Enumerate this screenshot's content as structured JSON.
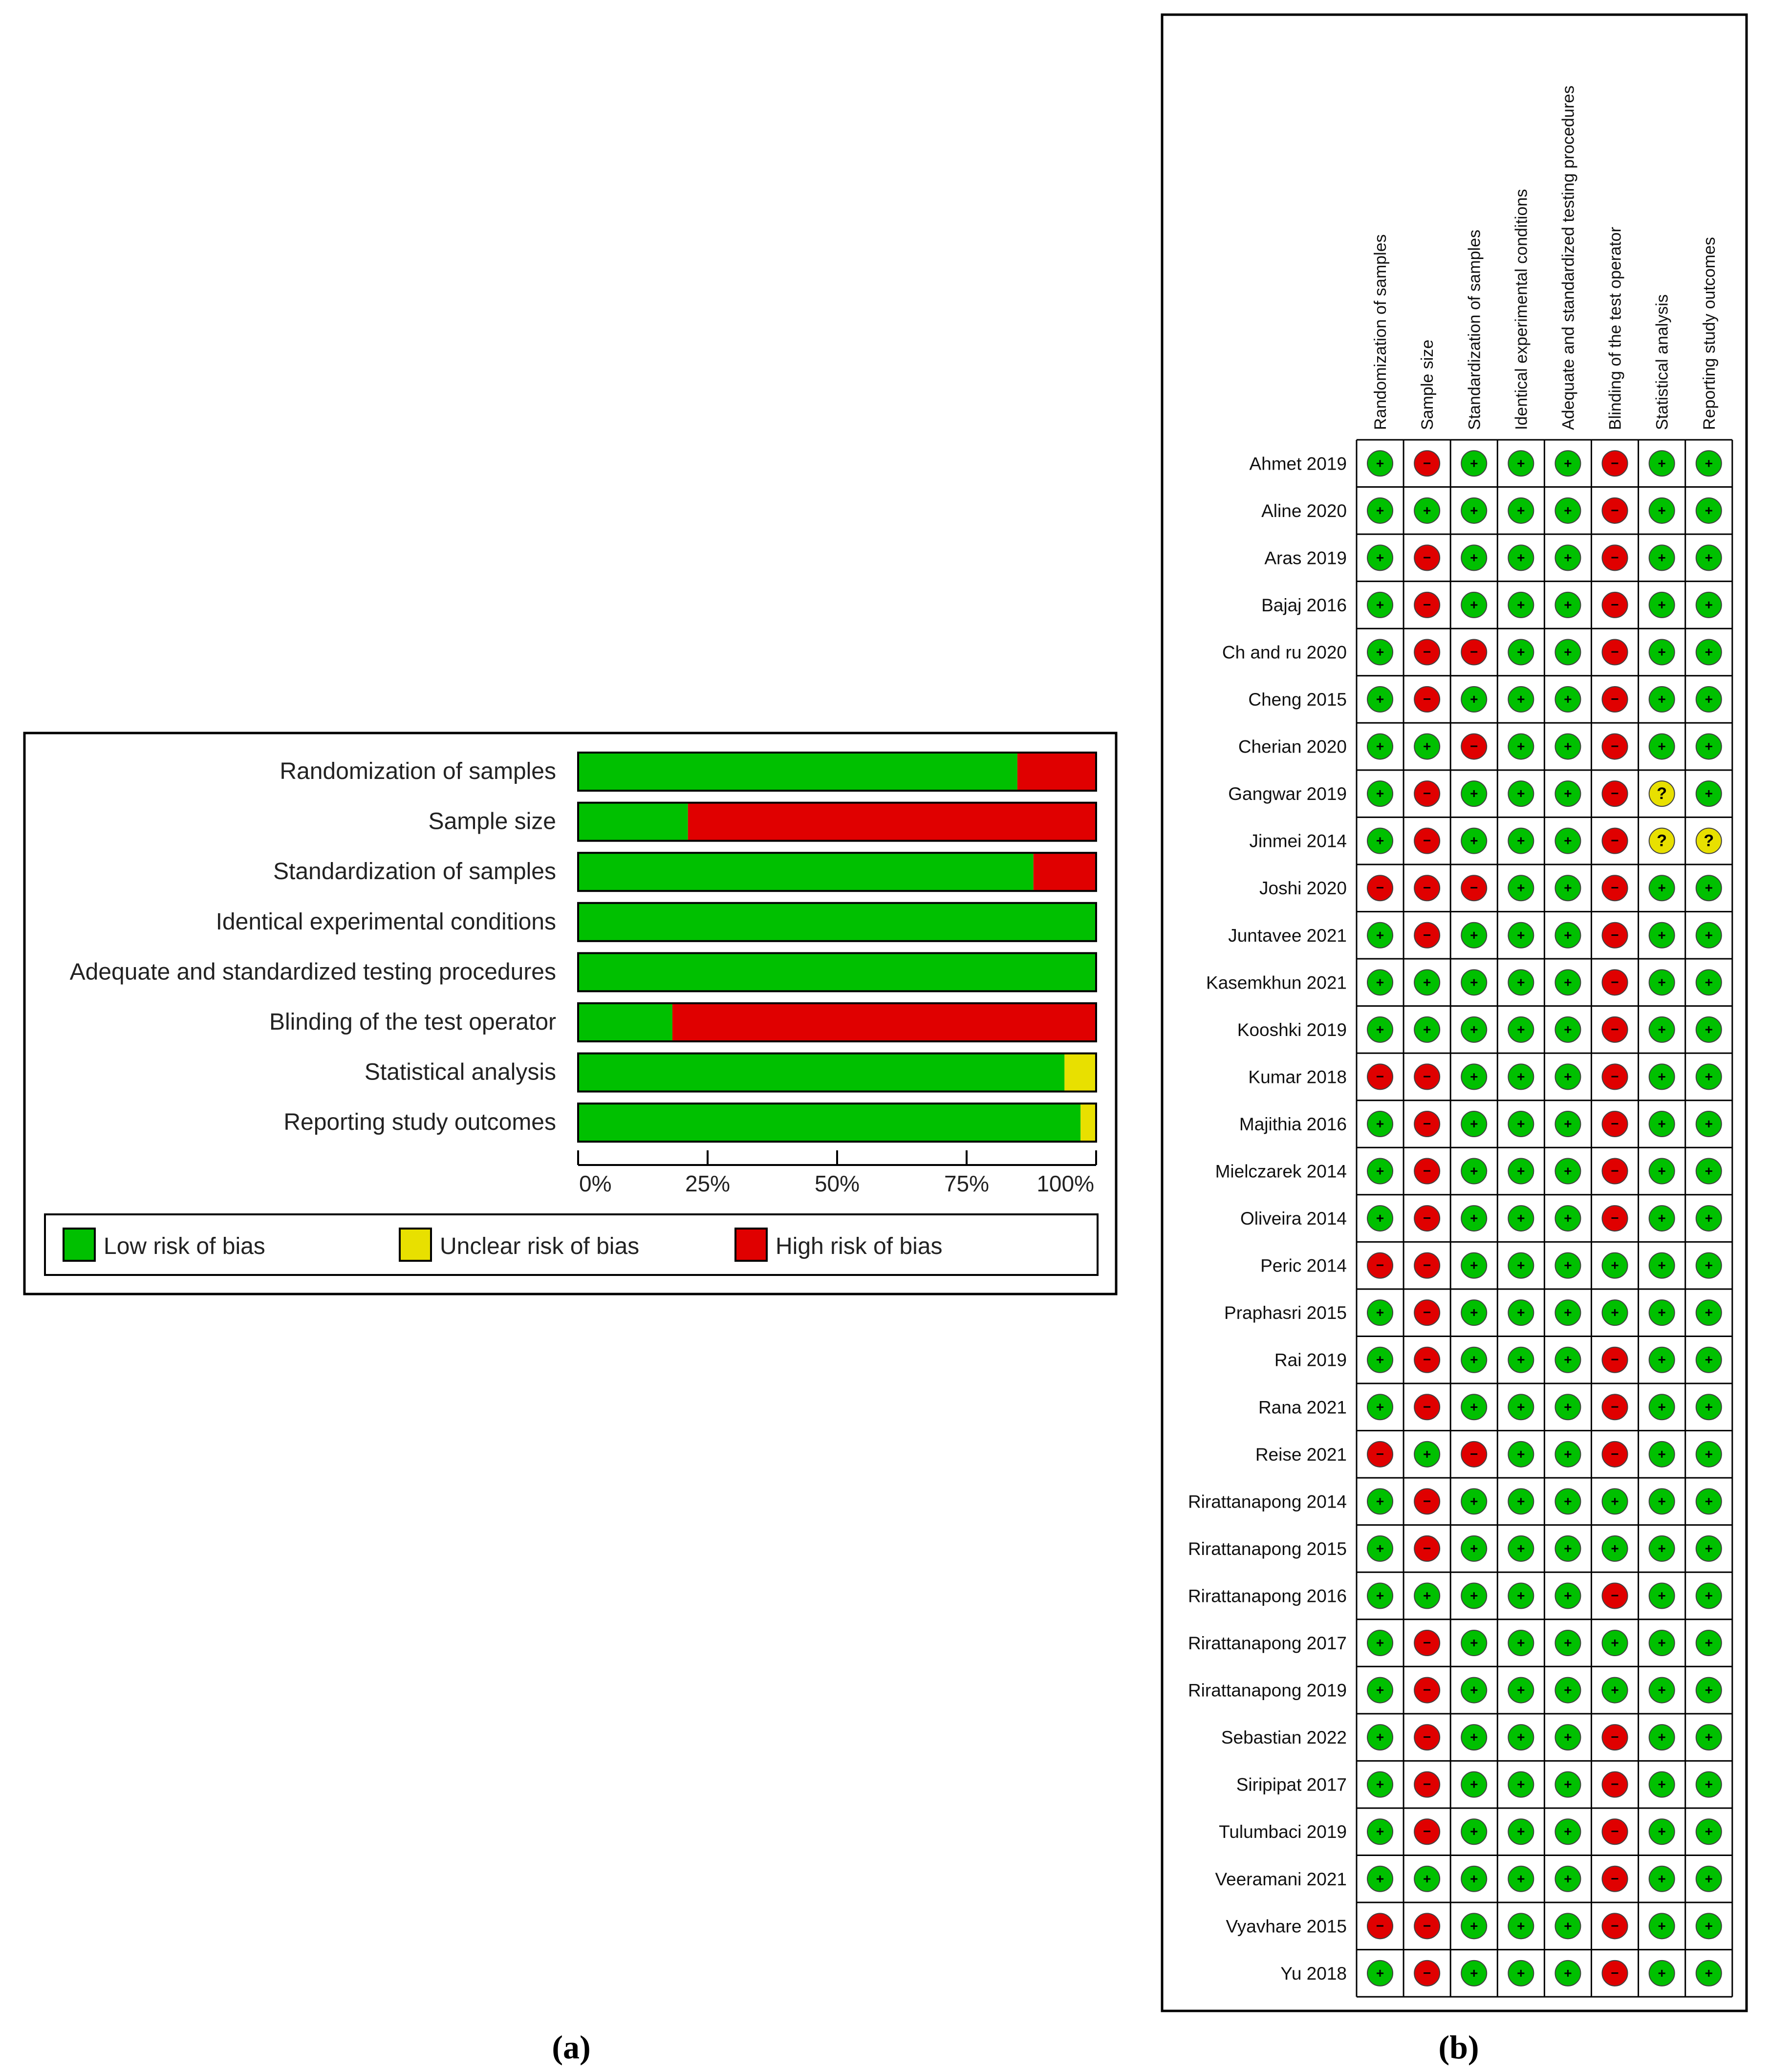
{
  "panel_a": {
    "caption": "(a)",
    "axis_ticks": [
      "0%",
      "25%",
      "50%",
      "75%",
      "100%"
    ],
    "legend": [
      {
        "key": "low",
        "label": "Low risk of bias"
      },
      {
        "key": "unclear",
        "label": "Unclear risk of bias"
      },
      {
        "key": "high",
        "label": "High risk of bias"
      }
    ]
  },
  "panel_b": {
    "caption": "(b)",
    "symbols": {
      "low": "+",
      "high": "−",
      "unclear": "?"
    }
  },
  "colors": {
    "low": "#00c000",
    "unclear": "#e8e000",
    "high": "#e00000",
    "border": "#000000"
  },
  "chart_data": [
    {
      "type": "bar",
      "orientation": "horizontal",
      "stacked": true,
      "categories": [
        "Randomization of samples",
        "Sample size",
        "Standardization of samples",
        "Identical experimental conditions",
        "Adequate and standardized testing procedures",
        "Blinding of the test operator",
        "Statistical analysis",
        "Reporting study outcomes"
      ],
      "series": [
        {
          "name": "Low risk of bias",
          "key": "low",
          "values": [
            84.8,
            21.2,
            87.9,
            100,
            100,
            18.2,
            93.9,
            97.0
          ]
        },
        {
          "name": "Unclear risk of bias",
          "key": "unclear",
          "values": [
            0,
            0,
            0,
            0,
            0,
            0,
            6.1,
            3.0
          ]
        },
        {
          "name": "High risk of bias",
          "key": "high",
          "values": [
            15.2,
            78.8,
            12.1,
            0,
            0,
            81.8,
            0,
            0
          ]
        }
      ],
      "xlim": [
        0,
        100
      ],
      "xunit": "%"
    },
    {
      "type": "table",
      "domains": [
        "Randomization of samples",
        "Sample size",
        "Standardization of samples",
        "Identical experimental conditions",
        "Adequate and standardized testing procedures",
        "Blinding of the test operator",
        "Statistical analysis",
        "Reporting study outcomes"
      ],
      "studies": [
        {
          "name": "Ahmet 2019",
          "ratings": [
            "low",
            "high",
            "low",
            "low",
            "low",
            "high",
            "low",
            "low"
          ]
        },
        {
          "name": "Aline 2020",
          "ratings": [
            "low",
            "low",
            "low",
            "low",
            "low",
            "high",
            "low",
            "low"
          ]
        },
        {
          "name": "Aras 2019",
          "ratings": [
            "low",
            "high",
            "low",
            "low",
            "low",
            "high",
            "low",
            "low"
          ]
        },
        {
          "name": "Bajaj 2016",
          "ratings": [
            "low",
            "high",
            "low",
            "low",
            "low",
            "high",
            "low",
            "low"
          ]
        },
        {
          "name": "Ch and ru 2020",
          "ratings": [
            "low",
            "high",
            "high",
            "low",
            "low",
            "high",
            "low",
            "low"
          ]
        },
        {
          "name": "Cheng 2015",
          "ratings": [
            "low",
            "high",
            "low",
            "low",
            "low",
            "high",
            "low",
            "low"
          ]
        },
        {
          "name": "Cherian 2020",
          "ratings": [
            "low",
            "low",
            "high",
            "low",
            "low",
            "high",
            "low",
            "low"
          ]
        },
        {
          "name": "Gangwar 2019",
          "ratings": [
            "low",
            "high",
            "low",
            "low",
            "low",
            "high",
            "unclear",
            "low"
          ]
        },
        {
          "name": "Jinmei 2014",
          "ratings": [
            "low",
            "high",
            "low",
            "low",
            "low",
            "high",
            "unclear",
            "unclear"
          ]
        },
        {
          "name": "Joshi 2020",
          "ratings": [
            "high",
            "high",
            "high",
            "low",
            "low",
            "high",
            "low",
            "low"
          ]
        },
        {
          "name": "Juntavee 2021",
          "ratings": [
            "low",
            "high",
            "low",
            "low",
            "low",
            "high",
            "low",
            "low"
          ]
        },
        {
          "name": "Kasemkhun 2021",
          "ratings": [
            "low",
            "low",
            "low",
            "low",
            "low",
            "high",
            "low",
            "low"
          ]
        },
        {
          "name": "Kooshki 2019",
          "ratings": [
            "low",
            "low",
            "low",
            "low",
            "low",
            "high",
            "low",
            "low"
          ]
        },
        {
          "name": "Kumar 2018",
          "ratings": [
            "high",
            "high",
            "low",
            "low",
            "low",
            "high",
            "low",
            "low"
          ]
        },
        {
          "name": "Majithia 2016",
          "ratings": [
            "low",
            "high",
            "low",
            "low",
            "low",
            "high",
            "low",
            "low"
          ]
        },
        {
          "name": "Mielczarek 2014",
          "ratings": [
            "low",
            "high",
            "low",
            "low",
            "low",
            "high",
            "low",
            "low"
          ]
        },
        {
          "name": "Oliveira 2014",
          "ratings": [
            "low",
            "high",
            "low",
            "low",
            "low",
            "high",
            "low",
            "low"
          ]
        },
        {
          "name": "Peric 2014",
          "ratings": [
            "high",
            "high",
            "low",
            "low",
            "low",
            "low",
            "low",
            "low"
          ]
        },
        {
          "name": "Praphasri 2015",
          "ratings": [
            "low",
            "high",
            "low",
            "low",
            "low",
            "low",
            "low",
            "low"
          ]
        },
        {
          "name": "Rai 2019",
          "ratings": [
            "low",
            "high",
            "low",
            "low",
            "low",
            "high",
            "low",
            "low"
          ]
        },
        {
          "name": "Rana 2021",
          "ratings": [
            "low",
            "high",
            "low",
            "low",
            "low",
            "high",
            "low",
            "low"
          ]
        },
        {
          "name": "Reise 2021",
          "ratings": [
            "high",
            "low",
            "high",
            "low",
            "low",
            "high",
            "low",
            "low"
          ]
        },
        {
          "name": "Rirattanapong 2014",
          "ratings": [
            "low",
            "high",
            "low",
            "low",
            "low",
            "low",
            "low",
            "low"
          ]
        },
        {
          "name": "Rirattanapong 2015",
          "ratings": [
            "low",
            "high",
            "low",
            "low",
            "low",
            "low",
            "low",
            "low"
          ]
        },
        {
          "name": "Rirattanapong 2016",
          "ratings": [
            "low",
            "low",
            "low",
            "low",
            "low",
            "high",
            "low",
            "low"
          ]
        },
        {
          "name": "Rirattanapong 2017",
          "ratings": [
            "low",
            "high",
            "low",
            "low",
            "low",
            "low",
            "low",
            "low"
          ]
        },
        {
          "name": "Rirattanapong 2019",
          "ratings": [
            "low",
            "high",
            "low",
            "low",
            "low",
            "low",
            "low",
            "low"
          ]
        },
        {
          "name": "Sebastian 2022",
          "ratings": [
            "low",
            "high",
            "low",
            "low",
            "low",
            "high",
            "low",
            "low"
          ]
        },
        {
          "name": "Siripipat 2017",
          "ratings": [
            "low",
            "high",
            "low",
            "low",
            "low",
            "high",
            "low",
            "low"
          ]
        },
        {
          "name": "Tulumbaci 2019",
          "ratings": [
            "low",
            "high",
            "low",
            "low",
            "low",
            "high",
            "low",
            "low"
          ]
        },
        {
          "name": "Veeramani 2021",
          "ratings": [
            "low",
            "low",
            "low",
            "low",
            "low",
            "high",
            "low",
            "low"
          ]
        },
        {
          "name": "Vyavhare 2015",
          "ratings": [
            "high",
            "high",
            "low",
            "low",
            "low",
            "high",
            "low",
            "low"
          ]
        },
        {
          "name": "Yu 2018",
          "ratings": [
            "low",
            "high",
            "low",
            "low",
            "low",
            "high",
            "low",
            "low"
          ]
        }
      ]
    }
  ]
}
